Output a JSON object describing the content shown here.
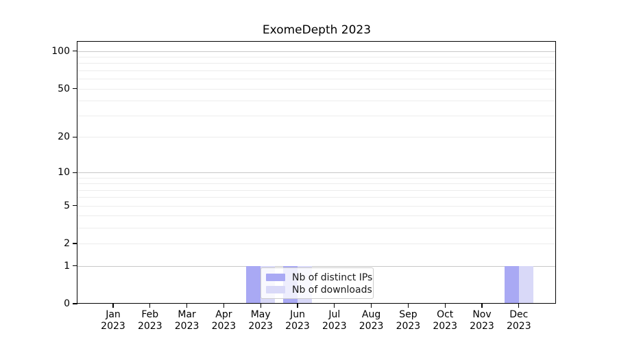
{
  "chart_data": {
    "type": "bar",
    "title": "ExomeDepth 2023",
    "categories": [
      "Jan",
      "Feb",
      "Mar",
      "Apr",
      "May",
      "Jun",
      "Jul",
      "Aug",
      "Sep",
      "Oct",
      "Nov",
      "Dec"
    ],
    "year": "2023",
    "series": [
      {
        "name": "Nb of distinct IPs",
        "color": "#a9a9f4",
        "values": [
          0,
          0,
          0,
          0,
          1,
          1,
          0,
          0,
          0,
          0,
          0,
          1
        ]
      },
      {
        "name": "Nb of downloads",
        "color": "#d9d9f8",
        "values": [
          0,
          0,
          0,
          0,
          1,
          1,
          0,
          0,
          0,
          0,
          0,
          1
        ]
      }
    ],
    "y_axis": {
      "scale": "log1p",
      "tick_values": [
        0,
        1,
        2,
        5,
        10,
        20,
        50,
        100
      ],
      "tick_labels": [
        "0",
        "1",
        "2",
        "5",
        "10",
        "20",
        "50",
        "100"
      ],
      "major_gridlines": [
        1,
        10,
        100
      ],
      "minor_gridlines": [
        2,
        3,
        4,
        5,
        6,
        7,
        8,
        9,
        20,
        30,
        40,
        50,
        60,
        70,
        80,
        90
      ],
      "ylim_top_value": 115
    },
    "legend": {
      "position": "lower center"
    },
    "colors": {
      "major_grid": "#c7c7c7",
      "minor_grid": "#ececec",
      "spine": "#000000",
      "background": "#ffffff"
    }
  }
}
